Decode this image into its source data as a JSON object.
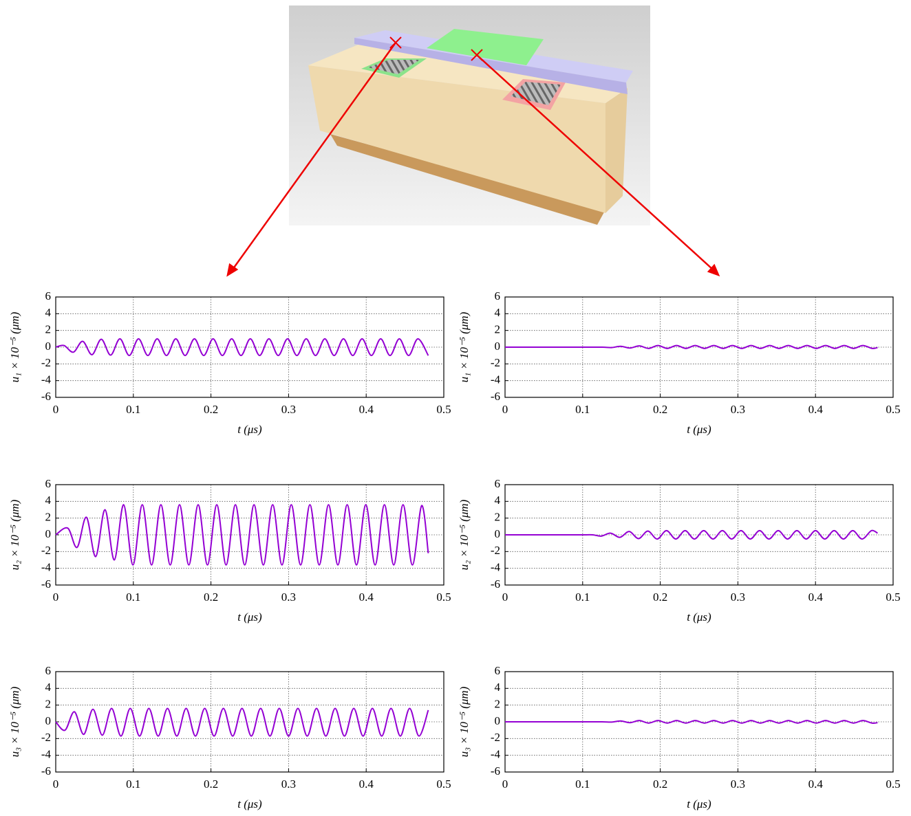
{
  "chart_data": [
    {
      "type": "line",
      "x_label": "t (μs)",
      "y_label": "u₁ × 10⁻⁵ (μm)",
      "grid": true,
      "xlim": [
        0,
        0.5
      ],
      "xticks": [
        0,
        0.1,
        0.2,
        0.3,
        0.4,
        0.5
      ],
      "ylim": [
        -6,
        6
      ],
      "yticks": [
        -6,
        -4,
        -2,
        0,
        2,
        4,
        6
      ],
      "x": [
        0,
        0.0107,
        0.0227,
        0.0347,
        0.0467,
        0.0587,
        0.0707,
        0.0827,
        0.0947,
        0.1067,
        0.1187,
        0.1307,
        0.1427,
        0.1547,
        0.1667,
        0.1787,
        0.1907,
        0.2027,
        0.2147,
        0.2267,
        0.2387,
        0.2507,
        0.2627,
        0.2747,
        0.2867,
        0.2987,
        0.3107,
        0.3227,
        0.3347,
        0.3467,
        0.3587,
        0.3707,
        0.3827,
        0.3947,
        0.4067,
        0.4187,
        0.4307,
        0.4427,
        0.4547,
        0.4667,
        0.48
      ],
      "series": [
        {
          "color": "#9400d3",
          "values": [
            0,
            0.2,
            -0.6,
            0.7,
            -0.9,
            0.95,
            -0.95,
            1,
            -1,
            1,
            -1,
            1,
            -1,
            1,
            -1,
            1,
            -1,
            1,
            -1,
            1,
            -1,
            1,
            -1,
            1,
            -1,
            1,
            -1,
            1,
            -1,
            1,
            -1,
            1,
            -1,
            1,
            -1,
            1,
            -1,
            1,
            -1,
            1,
            -1
          ]
        }
      ]
    },
    {
      "type": "line",
      "x_label": "t (μs)",
      "y_label": "u₁ × 10⁻⁵ (μm)",
      "grid": true,
      "xlim": [
        0,
        0.5
      ],
      "xticks": [
        0,
        0.1,
        0.2,
        0.3,
        0.4,
        0.5
      ],
      "ylim": [
        -6,
        6
      ],
      "yticks": [
        -6,
        -4,
        -2,
        0,
        2,
        4,
        6
      ],
      "x": [
        0,
        0.05,
        0.1,
        0.125,
        0.137,
        0.149,
        0.161,
        0.173,
        0.185,
        0.197,
        0.209,
        0.221,
        0.233,
        0.245,
        0.257,
        0.269,
        0.281,
        0.293,
        0.305,
        0.317,
        0.329,
        0.341,
        0.353,
        0.365,
        0.377,
        0.389,
        0.401,
        0.413,
        0.425,
        0.437,
        0.449,
        0.461,
        0.473,
        0.48
      ],
      "series": [
        {
          "color": "#9400d3",
          "values": [
            0,
            0,
            0,
            0,
            -0.05,
            0.1,
            -0.1,
            0.15,
            -0.15,
            0.2,
            -0.15,
            0.2,
            -0.15,
            0.2,
            -0.15,
            0.2,
            -0.15,
            0.2,
            -0.15,
            0.2,
            -0.15,
            0.2,
            -0.15,
            0.2,
            -0.15,
            0.2,
            -0.15,
            0.2,
            -0.15,
            0.2,
            -0.15,
            0.2,
            -0.15,
            -0.05
          ]
        }
      ]
    },
    {
      "type": "line",
      "x_label": "t (μs)",
      "y_label": "u₂ × 10⁻⁵ (μm)",
      "grid": true,
      "xlim": [
        0,
        0.5
      ],
      "xticks": [
        0,
        0.1,
        0.2,
        0.3,
        0.4,
        0.5
      ],
      "ylim": [
        -6,
        6
      ],
      "yticks": [
        -6,
        -4,
        -2,
        0,
        2,
        4,
        6
      ],
      "x": [
        0,
        0.0155,
        0.0275,
        0.0395,
        0.0515,
        0.0635,
        0.0755,
        0.0875,
        0.0995,
        0.1115,
        0.1235,
        0.1355,
        0.1475,
        0.1595,
        0.1715,
        0.1835,
        0.1955,
        0.2075,
        0.2195,
        0.2315,
        0.2435,
        0.2555,
        0.2675,
        0.2795,
        0.2915,
        0.3035,
        0.3155,
        0.3275,
        0.3395,
        0.3515,
        0.3635,
        0.3755,
        0.3875,
        0.3995,
        0.4115,
        0.4235,
        0.4355,
        0.4475,
        0.4595,
        0.4715,
        0.48
      ],
      "series": [
        {
          "color": "#9400d3",
          "values": [
            0,
            0.8,
            -1.5,
            2.1,
            -2.6,
            3.0,
            -3.0,
            3.6,
            -3.6,
            3.6,
            -3.6,
            3.6,
            -3.6,
            3.6,
            -3.6,
            3.6,
            -3.6,
            3.6,
            -3.6,
            3.6,
            -3.6,
            3.6,
            -3.6,
            3.6,
            -3.6,
            3.6,
            -3.6,
            3.6,
            -3.6,
            3.6,
            -3.6,
            3.6,
            -3.6,
            3.6,
            -3.6,
            3.6,
            -3.6,
            3.6,
            -3.6,
            3.5,
            -2.2
          ]
        }
      ]
    },
    {
      "type": "line",
      "x_label": "t (μs)",
      "y_label": "u₂ × 10⁻⁵ (μm)",
      "grid": true,
      "xlim": [
        0,
        0.5
      ],
      "xticks": [
        0,
        0.1,
        0.2,
        0.3,
        0.4,
        0.5
      ],
      "ylim": [
        -6,
        6
      ],
      "yticks": [
        -6,
        -4,
        -2,
        0,
        2,
        4,
        6
      ],
      "x": [
        0,
        0.05,
        0.1,
        0.113,
        0.124,
        0.136,
        0.148,
        0.16,
        0.172,
        0.184,
        0.196,
        0.208,
        0.22,
        0.232,
        0.244,
        0.256,
        0.268,
        0.28,
        0.292,
        0.304,
        0.316,
        0.328,
        0.34,
        0.352,
        0.364,
        0.376,
        0.388,
        0.4,
        0.412,
        0.424,
        0.436,
        0.448,
        0.46,
        0.472,
        0.48
      ],
      "series": [
        {
          "color": "#9400d3",
          "values": [
            0,
            0,
            0,
            0,
            -0.15,
            0.2,
            -0.3,
            0.4,
            -0.45,
            0.45,
            -0.5,
            0.5,
            -0.5,
            0.5,
            -0.5,
            0.5,
            -0.5,
            0.5,
            -0.5,
            0.5,
            -0.5,
            0.5,
            -0.5,
            0.5,
            -0.5,
            0.5,
            -0.5,
            0.5,
            -0.5,
            0.5,
            -0.5,
            0.5,
            -0.5,
            0.5,
            0.2
          ]
        }
      ]
    },
    {
      "type": "line",
      "x_label": "t (μs)",
      "y_label": "u₃ × 10⁻⁵ (μm)",
      "grid": true,
      "xlim": [
        0,
        0.5
      ],
      "xticks": [
        0,
        0.1,
        0.2,
        0.3,
        0.4,
        0.5
      ],
      "ylim": [
        -6,
        6
      ],
      "yticks": [
        -6,
        -4,
        -2,
        0,
        2,
        4,
        6
      ],
      "x": [
        0,
        0.012,
        0.024,
        0.036,
        0.048,
        0.06,
        0.072,
        0.084,
        0.096,
        0.108,
        0.12,
        0.132,
        0.144,
        0.156,
        0.168,
        0.18,
        0.192,
        0.204,
        0.216,
        0.228,
        0.24,
        0.252,
        0.264,
        0.276,
        0.288,
        0.3,
        0.312,
        0.324,
        0.336,
        0.348,
        0.36,
        0.372,
        0.384,
        0.396,
        0.408,
        0.42,
        0.432,
        0.444,
        0.456,
        0.468,
        0.48
      ],
      "series": [
        {
          "color": "#9400d3",
          "values": [
            0,
            -1.0,
            1.2,
            -1.5,
            1.5,
            -1.6,
            1.6,
            -1.7,
            1.6,
            -1.7,
            1.6,
            -1.7,
            1.6,
            -1.7,
            1.6,
            -1.7,
            1.6,
            -1.7,
            1.6,
            -1.7,
            1.6,
            -1.7,
            1.6,
            -1.7,
            1.6,
            -1.7,
            1.6,
            -1.7,
            1.6,
            -1.7,
            1.6,
            -1.7,
            1.6,
            -1.7,
            1.6,
            -1.7,
            1.6,
            -1.7,
            1.6,
            -1.7,
            1.4
          ]
        }
      ]
    },
    {
      "type": "line",
      "x_label": "t (μs)",
      "y_label": "u₃ × 10⁻⁵ (μm)",
      "grid": true,
      "xlim": [
        0,
        0.5
      ],
      "xticks": [
        0,
        0.1,
        0.2,
        0.3,
        0.4,
        0.5
      ],
      "ylim": [
        -6,
        6
      ],
      "yticks": [
        -6,
        -4,
        -2,
        0,
        2,
        4,
        6
      ],
      "x": [
        0,
        0.05,
        0.1,
        0.125,
        0.137,
        0.149,
        0.161,
        0.173,
        0.185,
        0.197,
        0.209,
        0.221,
        0.233,
        0.245,
        0.257,
        0.269,
        0.281,
        0.293,
        0.305,
        0.317,
        0.329,
        0.341,
        0.353,
        0.365,
        0.377,
        0.389,
        0.401,
        0.413,
        0.425,
        0.437,
        0.449,
        0.461,
        0.473,
        0.48
      ],
      "series": [
        {
          "color": "#9400d3",
          "values": [
            0,
            0,
            0,
            0,
            -0.03,
            0.1,
            -0.1,
            0.15,
            -0.15,
            0.15,
            -0.15,
            0.15,
            -0.15,
            0.15,
            -0.15,
            0.15,
            -0.15,
            0.15,
            -0.15,
            0.15,
            -0.15,
            0.15,
            -0.15,
            0.15,
            -0.15,
            0.15,
            -0.15,
            0.15,
            -0.15,
            0.15,
            -0.15,
            0.15,
            -0.15,
            -0.1
          ]
        }
      ]
    }
  ]
}
